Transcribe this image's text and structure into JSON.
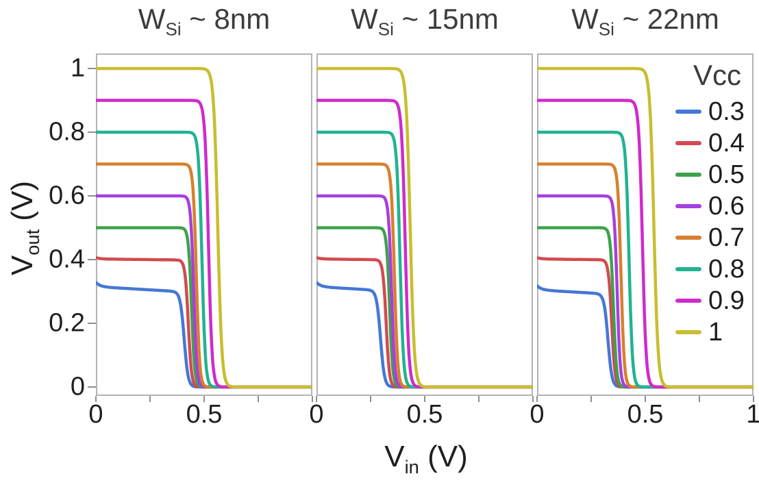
{
  "figure": {
    "background": "#ffffff",
    "frame_color": "#b3b3b3",
    "tick_color": "#8f8f8f",
    "text_color": "#1f1f1f",
    "title_color": "#3c3c3c"
  },
  "chart_data": {
    "type": "line",
    "xlabel": {
      "prefix": "V",
      "sub": "in",
      "suffix": " (V)"
    },
    "ylabel": {
      "prefix": "V",
      "sub": "out",
      "suffix": " (V)"
    },
    "x_range": [
      0,
      1
    ],
    "y_range": [
      0,
      1
    ],
    "grid": false,
    "x_ticks": [
      0,
      0.25,
      0.5,
      0.75,
      1
    ],
    "y_ticks": [
      0,
      0.2,
      0.4,
      0.6,
      0.8,
      1
    ],
    "y_tick_labels": [
      "0",
      "0.2",
      "0.4",
      "0.6",
      "0.8",
      "1"
    ],
    "legend": {
      "title": "Vcc",
      "position": "top-right"
    },
    "series": [
      {
        "name": "0.3",
        "vcc": 0.3,
        "color": "#4577d6",
        "start_bump": 0.013,
        "droop": 0.04
      },
      {
        "name": "0.4",
        "vcc": 0.4,
        "color": "#d24a50",
        "start_bump": 0.004,
        "droop": 0.008
      },
      {
        "name": "0.5",
        "vcc": 0.5,
        "color": "#3ea24b",
        "start_bump": 0,
        "droop": 0
      },
      {
        "name": "0.6",
        "vcc": 0.6,
        "color": "#a73fe0",
        "start_bump": 0,
        "droop": 0
      },
      {
        "name": "0.7",
        "vcc": 0.7,
        "color": "#d8802d",
        "start_bump": 0,
        "droop": 0
      },
      {
        "name": "0.8",
        "vcc": 0.8,
        "color": "#21b392",
        "start_bump": 0,
        "droop": 0
      },
      {
        "name": "0.9",
        "vcc": 0.9,
        "color": "#cf2bcc",
        "start_bump": 0,
        "droop": 0
      },
      {
        "name": "1",
        "vcc": 1.0,
        "color": "#c8be2f",
        "start_bump": 0,
        "droop": 0
      }
    ],
    "sigmoid_widths": [
      0.009,
      0.0075,
      0.0072,
      0.0072,
      0.0075,
      0.008,
      0.0085,
      0.0095
    ],
    "panels": [
      {
        "title": {
          "prefix": "W",
          "sub": "Si",
          "suffix": " ~ 8nm"
        },
        "x_tick_labels": [
          {
            "value": 0,
            "label": "0"
          },
          {
            "value": 0.5,
            "label": "0.5"
          }
        ],
        "plateaus": [
          0.315,
          0.402,
          0.5,
          0.6,
          0.7,
          0.8,
          0.9,
          1.0
        ],
        "switch_thresholds": [
          0.408,
          0.427,
          0.442,
          0.452,
          0.464,
          0.49,
          0.52,
          0.563
        ]
      },
      {
        "title": {
          "prefix": "W",
          "sub": "Si",
          "suffix": " ~ 15nm"
        },
        "x_tick_labels": [
          {
            "value": 0,
            "label": "0"
          },
          {
            "value": 0.5,
            "label": "0.5"
          }
        ],
        "plateaus": [
          0.315,
          0.402,
          0.5,
          0.6,
          0.7,
          0.8,
          0.9,
          1.0
        ],
        "switch_thresholds": [
          0.296,
          0.322,
          0.338,
          0.347,
          0.36,
          0.386,
          0.41,
          0.433
        ]
      },
      {
        "title": {
          "prefix": "W",
          "sub": "Si",
          "suffix": " ~ 22nm"
        },
        "x_tick_labels": [
          {
            "value": 0,
            "label": "0"
          },
          {
            "value": 0.5,
            "label": "0.5"
          },
          {
            "value": 1,
            "label": "1"
          }
        ],
        "plateaus": [
          0.305,
          0.402,
          0.5,
          0.6,
          0.7,
          0.8,
          0.9,
          1.0
        ],
        "switch_thresholds": [
          0.328,
          0.345,
          0.353,
          0.37,
          0.388,
          0.425,
          0.487,
          0.54
        ]
      }
    ]
  }
}
